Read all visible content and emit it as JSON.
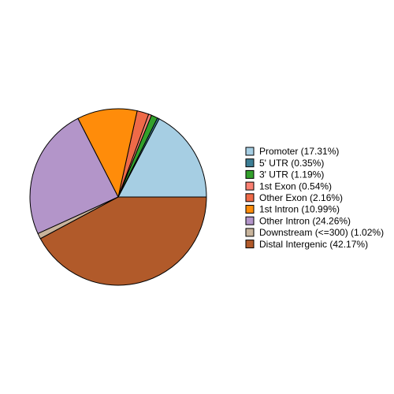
{
  "chart_data": {
    "type": "pie",
    "categories": [
      "Promoter (17.31%)",
      "5' UTR (0.35%)",
      "3' UTR (1.19%)",
      "1st Exon (0.54%)",
      "Other Exon (2.16%)",
      "1st Intron (10.99%)",
      "Other Intron (24.26%)",
      "Downstream (<=300) (1.02%)",
      "Distal Intergenic (42.17%)"
    ],
    "values": [
      17.31,
      0.35,
      1.19,
      0.54,
      2.16,
      10.99,
      24.26,
      1.02,
      42.17
    ],
    "colors": [
      "#a6cee3",
      "#3c7e95",
      "#33a02c",
      "#fb8072",
      "#ef6a48",
      "#ff8c0a",
      "#b395c9",
      "#c8b49c",
      "#b15a2a"
    ],
    "legend": "right"
  }
}
